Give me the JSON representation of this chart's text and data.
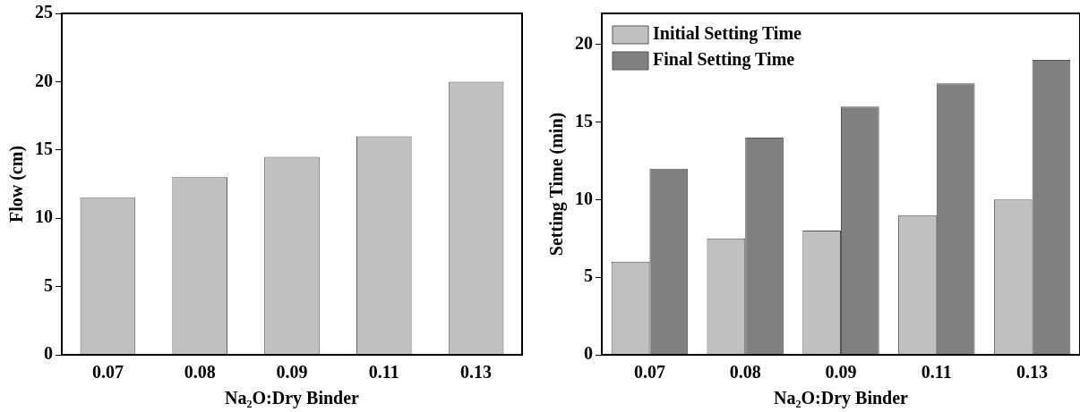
{
  "chart_data": [
    {
      "type": "bar",
      "categories": [
        "0.07",
        "0.08",
        "0.09",
        "0.11",
        "0.13"
      ],
      "xlabel": "Na₂O:Dry Binder",
      "ylabel": "Flow (cm)",
      "series": [
        {
          "color": "#c0c0c0",
          "values": [
            11.5,
            13,
            14.5,
            16,
            20
          ]
        }
      ],
      "ylim": [
        0,
        25
      ],
      "yticks": [
        0,
        5,
        10,
        15,
        20,
        25
      ],
      "grid": false,
      "legend": false
    },
    {
      "type": "bar",
      "categories": [
        "0.07",
        "0.08",
        "0.09",
        "0.11",
        "0.13"
      ],
      "xlabel": "Na₂O:Dry Binder",
      "ylabel": "Setting Time (min)",
      "series": [
        {
          "name": "Initial Setting Time",
          "color": "#c0c0c0",
          "values": [
            6,
            7.5,
            8,
            9,
            10
          ]
        },
        {
          "name": "Final Setting Time",
          "color": "#808080",
          "values": [
            12,
            14,
            16,
            17.5,
            19
          ]
        }
      ],
      "ylim": [
        0,
        22
      ],
      "yticks": [
        0,
        5,
        10,
        15,
        20
      ],
      "grid": false,
      "legend": "top left"
    }
  ]
}
